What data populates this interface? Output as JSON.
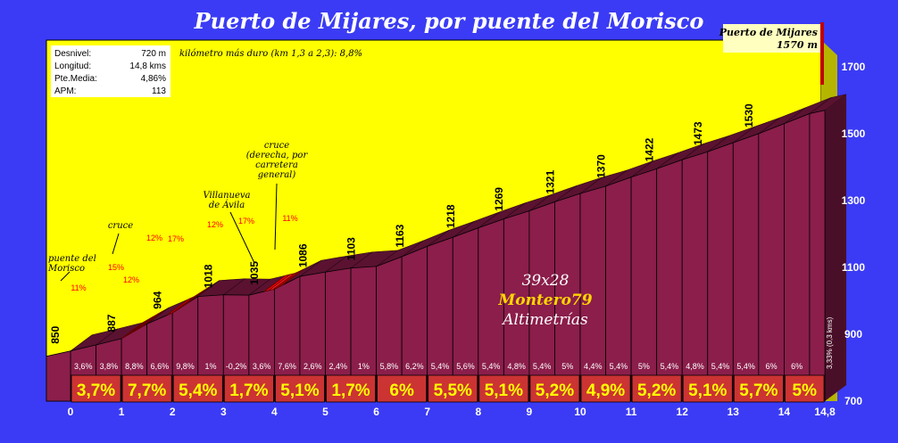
{
  "chart_data": {
    "type": "area",
    "title": "Puerto de Mijares, por puente del Morisco",
    "summit": {
      "name": "Puerto de Mijares",
      "altitude": "1570 m"
    },
    "stats": [
      {
        "label": "Desnivel:",
        "value": "720 m"
      },
      {
        "label": "Longitud:",
        "value": "14,8 kms"
      },
      {
        "label": "Pte.Media:",
        "value": "4,86%"
      },
      {
        "label": "APM:",
        "value": "113"
      }
    ],
    "hardest_km": "kilómetro más duro (km 1,3 a 2,3):  8,8%",
    "x_ticks": [
      "0",
      "1",
      "2",
      "3",
      "4",
      "5",
      "6",
      "7",
      "8",
      "9",
      "10",
      "11",
      "12",
      "13",
      "14",
      "14,8"
    ],
    "y_ticks": [
      "700",
      "900",
      "1100",
      "1300",
      "1500",
      "1700"
    ],
    "ylim": [
      700,
      1700
    ],
    "xlim": [
      0,
      14.8
    ],
    "km_markers": [
      {
        "km": 0.95,
        "label": "887"
      },
      {
        "km": 1.85,
        "label": "964"
      },
      {
        "km": 2.85,
        "label": "1018"
      },
      {
        "km": 3.75,
        "label": "1035"
      },
      {
        "km": 4.7,
        "label": "1086"
      },
      {
        "km": 5.65,
        "label": "1103"
      },
      {
        "km": 6.6,
        "label": "1163"
      },
      {
        "km": 7.6,
        "label": "1218"
      },
      {
        "km": 8.55,
        "label": "1269"
      },
      {
        "km": 9.55,
        "label": "1321"
      },
      {
        "km": 10.55,
        "label": "1370"
      },
      {
        "km": 11.5,
        "label": "1422"
      },
      {
        "km": 12.45,
        "label": "1473"
      },
      {
        "km": 13.45,
        "label": "1530"
      }
    ],
    "start_label": "850",
    "profile": [
      {
        "km": 0,
        "alt": 850
      },
      {
        "km": 0.5,
        "alt": 868
      },
      {
        "km": 1.0,
        "alt": 887
      },
      {
        "km": 1.5,
        "alt": 931
      },
      {
        "km": 2.0,
        "alt": 964
      },
      {
        "km": 2.5,
        "alt": 1013
      },
      {
        "km": 3.0,
        "alt": 1018
      },
      {
        "km": 3.5,
        "alt": 1017
      },
      {
        "km": 4.0,
        "alt": 1035
      },
      {
        "km": 4.5,
        "alt": 1073
      },
      {
        "km": 5.0,
        "alt": 1086
      },
      {
        "km": 5.5,
        "alt": 1098
      },
      {
        "km": 6.0,
        "alt": 1103
      },
      {
        "km": 6.5,
        "alt": 1132
      },
      {
        "km": 7.0,
        "alt": 1163
      },
      {
        "km": 7.5,
        "alt": 1190
      },
      {
        "km": 8.0,
        "alt": 1218
      },
      {
        "km": 8.5,
        "alt": 1245
      },
      {
        "km": 9.0,
        "alt": 1269
      },
      {
        "km": 9.5,
        "alt": 1296
      },
      {
        "km": 10.0,
        "alt": 1321
      },
      {
        "km": 10.5,
        "alt": 1343
      },
      {
        "km": 11.0,
        "alt": 1370
      },
      {
        "km": 11.5,
        "alt": 1395
      },
      {
        "km": 12.0,
        "alt": 1422
      },
      {
        "km": 12.5,
        "alt": 1446
      },
      {
        "km": 13.0,
        "alt": 1473
      },
      {
        "km": 13.5,
        "alt": 1500
      },
      {
        "km": 14.0,
        "alt": 1530
      },
      {
        "km": 14.5,
        "alt": 1560
      },
      {
        "km": 14.8,
        "alt": 1570
      }
    ],
    "half_km_grades": [
      "3,6%",
      "3,8%",
      "8,8%",
      "6,6%",
      "9,8%",
      "1%",
      "-0,2%",
      "3,6%",
      "7,6%",
      "2,6%",
      "2,4%",
      "1%",
      "5,8%",
      "6,2%",
      "5,4%",
      "5,6%",
      "5,4%",
      "4,8%",
      "5,4%",
      "5%",
      "4,4%",
      "5,4%",
      "5%",
      "5,4%",
      "4,8%",
      "5,4%",
      "5,4%",
      "6%",
      "6%"
    ],
    "last_grade_note": "3,33% (0,3 kms)",
    "km_grades": [
      "3,7%",
      "7,7%",
      "5,4%",
      "1,7%",
      "5,1%",
      "1,7%",
      "6%",
      "5,5%",
      "5,1%",
      "5,2%",
      "4,9%",
      "5,2%",
      "5,1%",
      "5,7%",
      "5%"
    ],
    "steep_ramps": [
      {
        "label": "15%",
        "labels2": "12%"
      },
      {
        "label": "12%",
        "labels2": "17%"
      },
      {
        "label": "12%",
        "labels2": "17%"
      }
    ],
    "steep_pct_labels": [
      "11%",
      "15%",
      "12%",
      "12%",
      "17%",
      "12%",
      "17%",
      "11%"
    ],
    "annotations": [
      {
        "text": "puente del Morisco"
      },
      {
        "text": "cruce"
      },
      {
        "text": "Villanueva de Ávila"
      },
      {
        "text": "cruce (derecha, por carretera general)"
      }
    ],
    "watermark": {
      "line1": "39x28",
      "line2": "Montero79",
      "line3": "Altimetrías"
    }
  },
  "colors": {
    "background": "#3b3bf5",
    "plot": "#ffff00",
    "front": "#8b1e4b",
    "top": "#5a1230",
    "grade_bar": "#cc3333",
    "grade_text": "#ffff00",
    "steep": "#ff0000"
  }
}
